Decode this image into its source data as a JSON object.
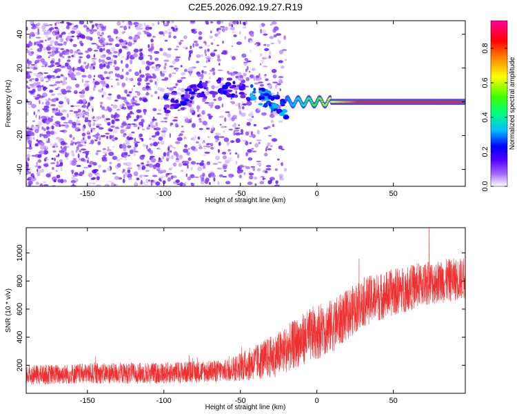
{
  "title": "C2E5.2026.092.19.27.R19",
  "chart_data": [
    {
      "type": "heatmap",
      "name": "spectrogram",
      "xlabel": "Height of straight line (km)",
      "ylabel": "Frequency (Hz)",
      "xlim": [
        -190,
        97
      ],
      "ylim": [
        -50,
        48
      ],
      "xticks": [
        -150,
        -100,
        -50,
        0,
        50
      ],
      "yticks": [
        -40,
        -20,
        0,
        20,
        40
      ],
      "colorbar": {
        "label": "Normalized spectral amplitude",
        "ticks": [
          0.0,
          0.2,
          0.4,
          0.6,
          0.8
        ],
        "tick_labels": [
          "0.0",
          "0.2",
          "0.4",
          "0.6",
          "0.8"
        ],
        "range": [
          0,
          0.96
        ],
        "colors": [
          "#ffffff",
          "#8000ff",
          "#0000ff",
          "#00ffff",
          "#00ff00",
          "#ffff00",
          "#ff8000",
          "#ff0000",
          "#ff00ff"
        ]
      },
      "features": {
        "noise_region_x": [
          -190,
          -20
        ],
        "noise_amplitude": [
          0.02,
          0.15
        ],
        "carrier_line": {
          "x": [
            -20,
            97
          ],
          "frequency": 0,
          "amplitude_start": 0.3,
          "amplitude_end": 0.85
        },
        "transition_arc": {
          "x": [
            -100,
            -20
          ],
          "frequency": [
            -5,
            15
          ],
          "amplitude": 0.2
        }
      }
    },
    {
      "type": "line",
      "name": "snr",
      "xlabel": "Height of straight line (km)",
      "ylabel": "SNR (10 * v/v)",
      "xlim": [
        -190,
        97
      ],
      "ylim": [
        0,
        1180
      ],
      "xticks": [
        -150,
        -100,
        -50,
        0,
        50
      ],
      "yticks": [
        200,
        400,
        600,
        800,
        1000
      ],
      "color": "#f03030",
      "trend": {
        "x": [
          -190,
          -150,
          -100,
          -60,
          -40,
          -25,
          -10,
          0,
          10,
          20,
          30,
          50,
          70,
          97
        ],
        "y": [
          130,
          140,
          145,
          160,
          220,
          280,
          380,
          440,
          480,
          560,
          650,
          720,
          780,
          820
        ]
      },
      "noise_amplitude": {
        "x": [
          -190,
          -60,
          -30,
          0,
          20,
          97
        ],
        "y": [
          70,
          80,
          150,
          200,
          180,
          150
        ]
      }
    }
  ]
}
